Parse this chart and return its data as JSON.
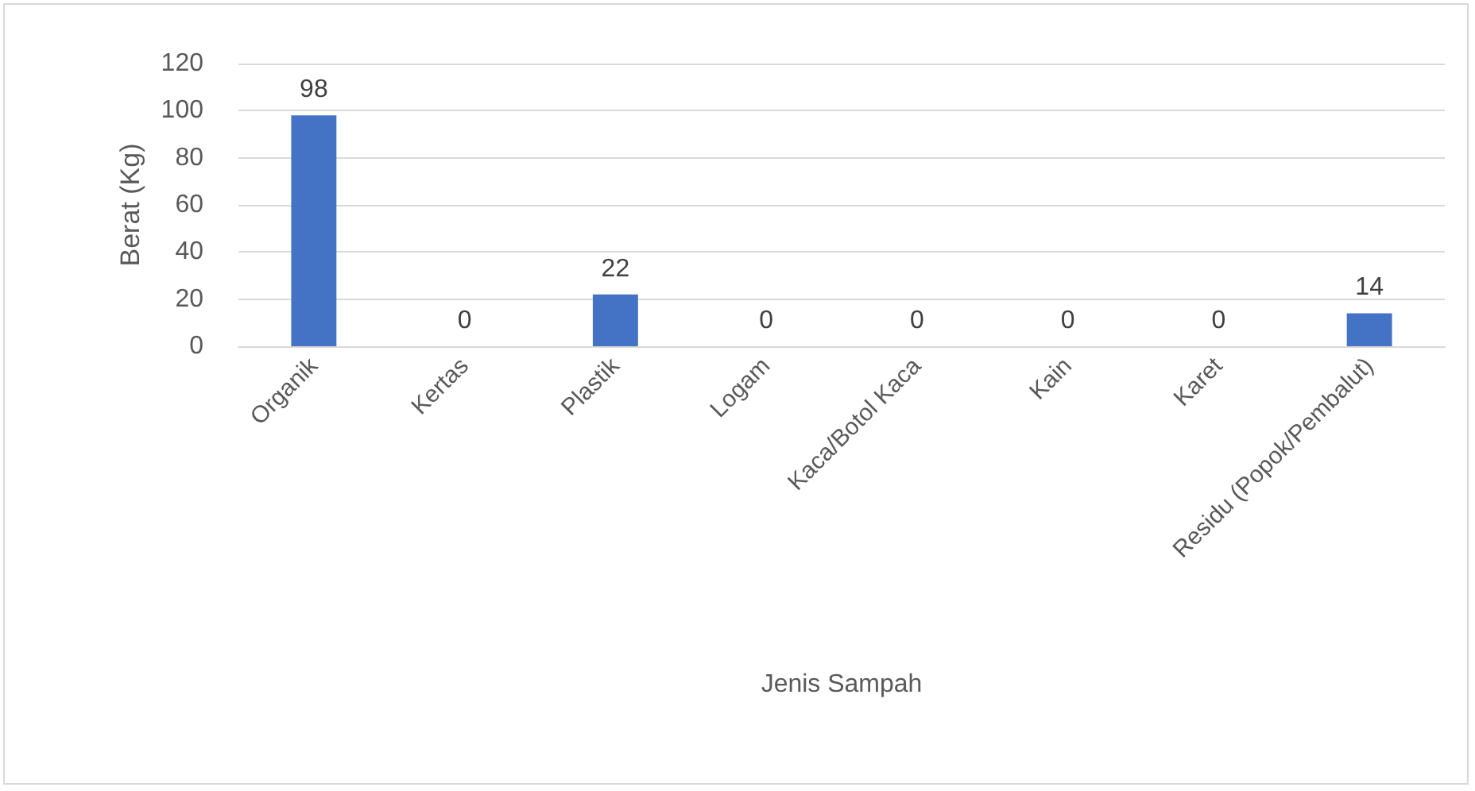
{
  "chart_data": {
    "type": "bar",
    "xlabel": "Jenis Sampah",
    "ylabel": "Berat (Kg)",
    "categories": [
      "Organik",
      "Kertas",
      "Plastik",
      "Logam",
      "Kaca/Botol Kaca",
      "Kain",
      "Karet",
      "Residu (Popok/Pembalut)"
    ],
    "values": [
      98,
      0,
      22,
      0,
      0,
      0,
      0,
      14
    ],
    "color": "#4472c4",
    "ylim": [
      0,
      120
    ],
    "yticks": [
      0,
      20,
      40,
      60,
      80,
      100,
      120
    ],
    "grid": "y",
    "data_labels": true
  }
}
